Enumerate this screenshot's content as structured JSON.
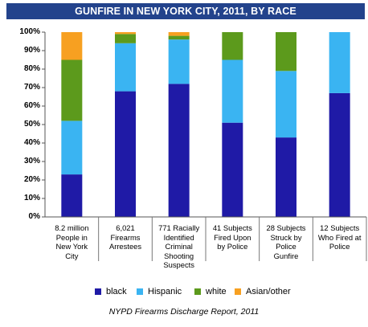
{
  "chart_data": {
    "type": "bar",
    "stacked": true,
    "normalized_percent": true,
    "title": "GUNFIRE IN NEW YORK CITY, 2011, BY RACE",
    "categories": [
      "8.2 million People in New York City",
      "6,021 Firearms Arrestees",
      "771 Racially Identified Criminal Shooting Suspects",
      "41 Subjects Fired Upon by Police",
      "28 Subjects Struck by Police Gunfire",
      "12 Subjects Who Fired at Police"
    ],
    "category_lines": [
      [
        "8.2 million",
        "People in",
        "New York",
        "City"
      ],
      [
        "6,021",
        "Firearms",
        "Arrestees"
      ],
      [
        "771 Racially",
        "Identified",
        "Criminal",
        "Shooting",
        "Suspects"
      ],
      [
        "41 Subjects",
        "Fired Upon",
        "by Police"
      ],
      [
        "28 Subjects",
        "Struck by",
        "Police",
        "Gunfire"
      ],
      [
        "12 Subjects",
        "Who Fired at",
        "Police"
      ]
    ],
    "series": [
      {
        "name": "black",
        "color": "#1f1aa6",
        "values": [
          23,
          68,
          72,
          51,
          43,
          67
        ]
      },
      {
        "name": "Hispanic",
        "color": "#3ab4f2",
        "values": [
          29,
          26,
          24,
          34,
          36,
          33
        ]
      },
      {
        "name": "white",
        "color": "#5c9a1c",
        "values": [
          33,
          5,
          2,
          15,
          21,
          0
        ]
      },
      {
        "name": "Asian/other",
        "color": "#f7a021",
        "values": [
          15,
          1,
          2,
          0,
          0,
          0
        ]
      }
    ],
    "ylim": [
      0,
      100
    ],
    "yticks": [
      "0%",
      "10%",
      "20%",
      "30%",
      "40%",
      "50%",
      "60%",
      "70%",
      "80%",
      "90%",
      "100%"
    ],
    "grid": false,
    "legend_position": "bottom"
  },
  "source_note": "NYPD Firearms Discharge Report, 2011"
}
